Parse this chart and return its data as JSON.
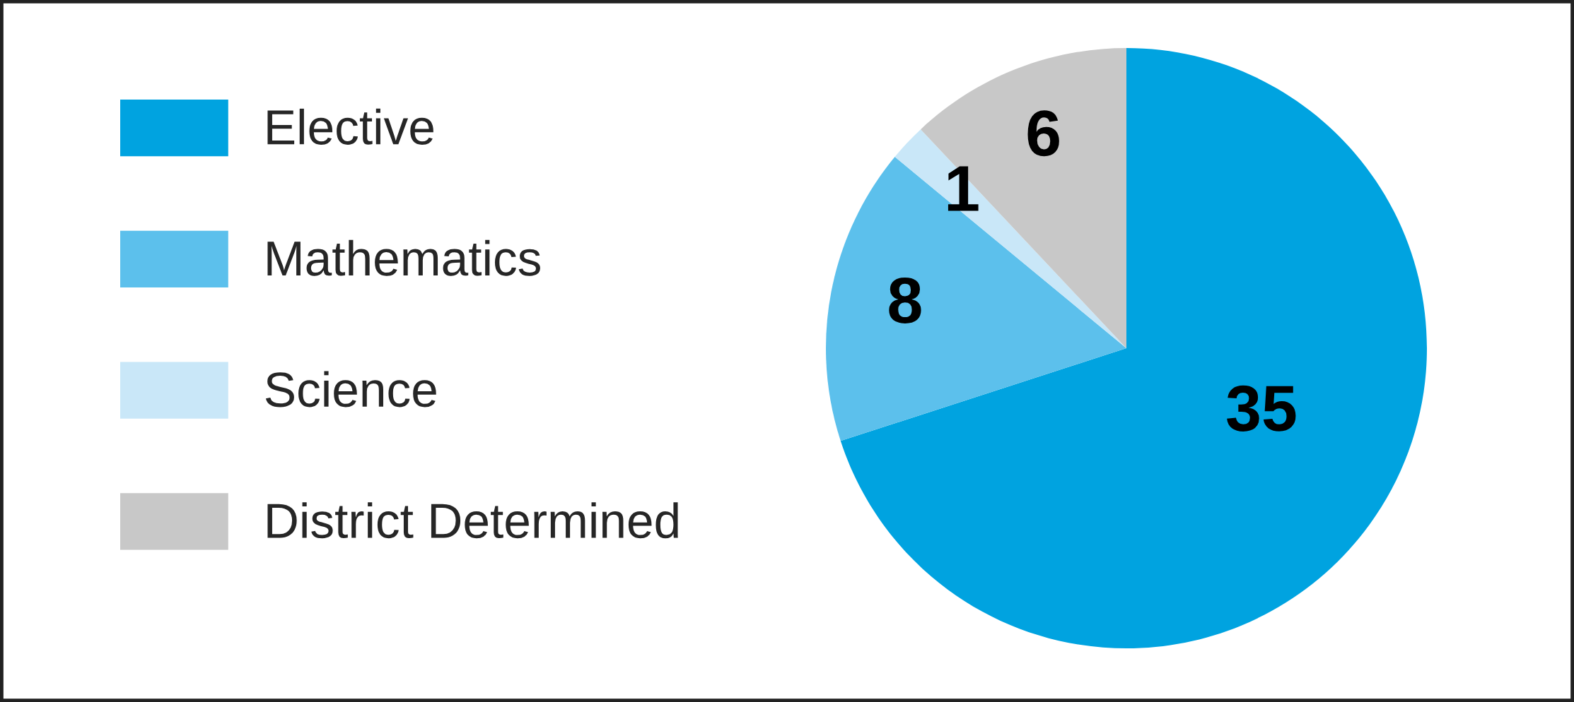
{
  "chart_data": {
    "type": "pie",
    "categories": [
      "Elective",
      "Mathematics",
      "Science",
      "District Determined"
    ],
    "values": [
      35,
      8,
      1,
      6
    ],
    "colors": [
      "#00a3e0",
      "#5cc0ec",
      "#c9e7f8",
      "#c8c8c8"
    ],
    "data_labels": true,
    "legend": "left"
  }
}
